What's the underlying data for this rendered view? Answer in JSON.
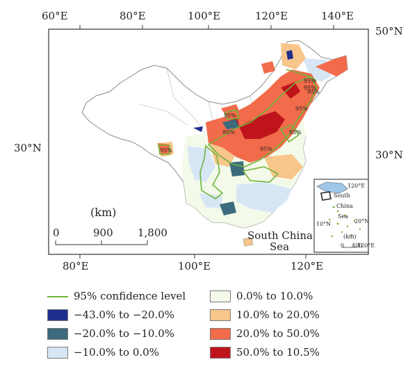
{
  "map": {
    "top_lon_labels": [
      "60°E",
      "80°E",
      "100°E",
      "120°E",
      "140°E"
    ],
    "bottom_lon_labels": [
      "80°E",
      "100°E",
      "120°E"
    ],
    "lat_labels_left": [
      "30°N"
    ],
    "lat_labels_right": [
      "50°N",
      "30°N"
    ],
    "scale": {
      "unit": "(km)",
      "ticks": [
        "0",
        "900",
        "1,800"
      ]
    },
    "sea_label_line1": "South China",
    "sea_label_line2": "Sea",
    "contour_labels": [
      "95%",
      "95%",
      "95%",
      "95%",
      "95%",
      "95%",
      "95%",
      "95%",
      "95%"
    ],
    "inset": {
      "lat_label": "120°E",
      "side_lat_1": "20°N",
      "side_lat_2": "10°N",
      "text_south": "South",
      "text_china": "China",
      "text_sea": "Sea",
      "scale_unit": "(km)",
      "scale_ticks": [
        "0",
        "400"
      ],
      "bottom_lon": "120°E"
    }
  },
  "legend": [
    {
      "label": "95% confidence level",
      "kind": "line",
      "color": "#6fb43a"
    },
    {
      "label": "−43.0% to −20.0%",
      "kind": "swatch",
      "color": "#1f2e8c"
    },
    {
      "label": "−20.0% to −10.0%",
      "kind": "swatch",
      "color": "#3b6b7c"
    },
    {
      "label": "−10.0% to 0.0%",
      "kind": "swatch",
      "color": "#d6e6f5"
    },
    {
      "label": "0.0% to 10.0%",
      "kind": "swatch",
      "color": "#f3fae9"
    },
    {
      "label": "10.0% to 20.0%",
      "kind": "swatch",
      "color": "#f8c58a"
    },
    {
      "label": "20.0% to 50.0%",
      "kind": "swatch",
      "color": "#f26b4a"
    },
    {
      "label": "50.0% to 10.5%",
      "kind": "swatch",
      "color": "#c0141d"
    }
  ]
}
